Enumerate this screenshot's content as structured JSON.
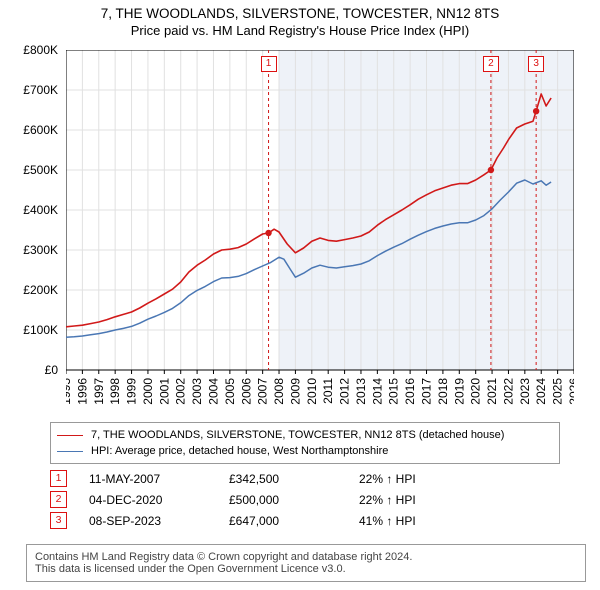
{
  "title_line1": "7, THE WOODLANDS, SILVERSTONE, TOWCESTER, NN12 8TS",
  "title_line2": "Price paid vs. HM Land Registry's House Price Index (HPI)",
  "chart": {
    "type": "line",
    "background_color": "#ffffff",
    "grid_color": "#e1e1e1",
    "axis_color": "#000000",
    "x": {
      "year_start": 1995,
      "year_end": 2026,
      "tick_labels": [
        "1995",
        "1996",
        "1997",
        "1998",
        "1999",
        "2000",
        "2001",
        "2002",
        "2003",
        "2004",
        "2005",
        "2006",
        "2007",
        "2008",
        "2009",
        "2010",
        "2011",
        "2012",
        "2013",
        "2014",
        "2015",
        "2016",
        "2017",
        "2018",
        "2019",
        "2020",
        "2021",
        "2022",
        "2023",
        "2024",
        "2025",
        "2026"
      ],
      "label_fontsize": 12,
      "label_rotation": -90
    },
    "y": {
      "min": 0,
      "max": 800000,
      "tick_step": 100000,
      "tick_labels": [
        "£0",
        "£100K",
        "£200K",
        "£300K",
        "£400K",
        "£500K",
        "£600K",
        "£700K",
        "£800K"
      ],
      "label_fontsize": 12
    },
    "shaded_from_year": 2008,
    "shaded_fill": "#eef2f8",
    "series": [
      {
        "id": "subject",
        "label": "7, THE WOODLANDS, SILVERSTONE, TOWCESTER, NN12 8TS (detached house)",
        "color": "#d11919",
        "line_width": 1.6,
        "points": [
          [
            1995.0,
            108000
          ],
          [
            1995.5,
            110000
          ],
          [
            1996.0,
            112000
          ],
          [
            1996.5,
            116000
          ],
          [
            1997.0,
            120000
          ],
          [
            1997.5,
            126000
          ],
          [
            1998.0,
            133000
          ],
          [
            1998.5,
            139000
          ],
          [
            1999.0,
            145000
          ],
          [
            1999.5,
            155000
          ],
          [
            2000.0,
            167000
          ],
          [
            2000.5,
            178000
          ],
          [
            2001.0,
            190000
          ],
          [
            2001.5,
            202000
          ],
          [
            2002.0,
            220000
          ],
          [
            2002.5,
            245000
          ],
          [
            2003.0,
            262000
          ],
          [
            2003.5,
            275000
          ],
          [
            2004.0,
            290000
          ],
          [
            2004.5,
            300000
          ],
          [
            2005.0,
            302000
          ],
          [
            2005.5,
            306000
          ],
          [
            2006.0,
            315000
          ],
          [
            2006.5,
            328000
          ],
          [
            2007.0,
            340000
          ],
          [
            2007.36,
            342500
          ],
          [
            2007.7,
            352000
          ],
          [
            2008.0,
            345000
          ],
          [
            2008.5,
            315000
          ],
          [
            2009.0,
            293000
          ],
          [
            2009.5,
            305000
          ],
          [
            2010.0,
            322000
          ],
          [
            2010.5,
            330000
          ],
          [
            2011.0,
            324000
          ],
          [
            2011.5,
            322000
          ],
          [
            2012.0,
            326000
          ],
          [
            2012.5,
            330000
          ],
          [
            2013.0,
            335000
          ],
          [
            2013.5,
            345000
          ],
          [
            2014.0,
            362000
          ],
          [
            2014.5,
            376000
          ],
          [
            2015.0,
            388000
          ],
          [
            2015.5,
            400000
          ],
          [
            2016.0,
            413000
          ],
          [
            2016.5,
            427000
          ],
          [
            2017.0,
            438000
          ],
          [
            2017.5,
            448000
          ],
          [
            2018.0,
            455000
          ],
          [
            2018.5,
            462000
          ],
          [
            2019.0,
            466000
          ],
          [
            2019.5,
            466000
          ],
          [
            2020.0,
            475000
          ],
          [
            2020.5,
            488000
          ],
          [
            2020.93,
            500000
          ],
          [
            2021.3,
            530000
          ],
          [
            2021.7,
            555000
          ],
          [
            2022.0,
            576000
          ],
          [
            2022.5,
            605000
          ],
          [
            2023.0,
            615000
          ],
          [
            2023.5,
            622000
          ],
          [
            2023.69,
            647000
          ],
          [
            2024.0,
            690000
          ],
          [
            2024.3,
            660000
          ],
          [
            2024.6,
            680000
          ]
        ]
      },
      {
        "id": "hpi",
        "label": "HPI: Average price, detached house, West Northamptonshire",
        "color": "#4a77b4",
        "line_width": 1.5,
        "points": [
          [
            1995.0,
            82000
          ],
          [
            1995.5,
            83000
          ],
          [
            1996.0,
            85000
          ],
          [
            1996.5,
            88000
          ],
          [
            1997.0,
            91000
          ],
          [
            1997.5,
            95000
          ],
          [
            1998.0,
            100000
          ],
          [
            1998.5,
            104000
          ],
          [
            1999.0,
            109000
          ],
          [
            1999.5,
            117000
          ],
          [
            2000.0,
            127000
          ],
          [
            2000.5,
            135000
          ],
          [
            2001.0,
            144000
          ],
          [
            2001.5,
            154000
          ],
          [
            2002.0,
            168000
          ],
          [
            2002.5,
            186000
          ],
          [
            2003.0,
            199000
          ],
          [
            2003.5,
            209000
          ],
          [
            2004.0,
            221000
          ],
          [
            2004.5,
            230000
          ],
          [
            2005.0,
            231000
          ],
          [
            2005.5,
            234000
          ],
          [
            2006.0,
            241000
          ],
          [
            2006.5,
            251000
          ],
          [
            2007.0,
            260000
          ],
          [
            2007.5,
            269000
          ],
          [
            2008.0,
            282000
          ],
          [
            2008.3,
            277000
          ],
          [
            2008.7,
            251000
          ],
          [
            2009.0,
            232000
          ],
          [
            2009.5,
            242000
          ],
          [
            2010.0,
            255000
          ],
          [
            2010.5,
            262000
          ],
          [
            2011.0,
            257000
          ],
          [
            2011.5,
            255000
          ],
          [
            2012.0,
            258000
          ],
          [
            2012.5,
            261000
          ],
          [
            2013.0,
            265000
          ],
          [
            2013.5,
            273000
          ],
          [
            2014.0,
            286000
          ],
          [
            2014.5,
            297000
          ],
          [
            2015.0,
            307000
          ],
          [
            2015.5,
            316000
          ],
          [
            2016.0,
            327000
          ],
          [
            2016.5,
            337000
          ],
          [
            2017.0,
            346000
          ],
          [
            2017.5,
            354000
          ],
          [
            2018.0,
            360000
          ],
          [
            2018.5,
            365000
          ],
          [
            2019.0,
            368000
          ],
          [
            2019.5,
            368000
          ],
          [
            2020.0,
            375000
          ],
          [
            2020.5,
            386000
          ],
          [
            2021.0,
            403000
          ],
          [
            2021.5,
            425000
          ],
          [
            2022.0,
            445000
          ],
          [
            2022.5,
            467000
          ],
          [
            2023.0,
            475000
          ],
          [
            2023.5,
            465000
          ],
          [
            2024.0,
            473000
          ],
          [
            2024.3,
            462000
          ],
          [
            2024.6,
            470000
          ]
        ]
      }
    ],
    "sale_markers": [
      {
        "num": "1",
        "year": 2007.36,
        "value": 342500,
        "line_color": "#d11919"
      },
      {
        "num": "2",
        "year": 2020.93,
        "value": 500000,
        "line_color": "#d11919"
      },
      {
        "num": "3",
        "year": 2023.69,
        "value": 647000,
        "line_color": "#d11919"
      }
    ],
    "marker_dot_radius": 3.2
  },
  "legend": {
    "colors": [
      "#d11919",
      "#4a77b4"
    ],
    "labels": [
      "7, THE WOODLANDS, SILVERSTONE, TOWCESTER, NN12 8TS (detached house)",
      "HPI: Average price, detached house, West Northamptonshire"
    ]
  },
  "sale_rows": [
    {
      "num": "1",
      "date": "11-MAY-2007",
      "price": "£342,500",
      "pct": "22% ↑ HPI"
    },
    {
      "num": "2",
      "date": "04-DEC-2020",
      "price": "£500,000",
      "pct": "22% ↑ HPI"
    },
    {
      "num": "3",
      "date": "08-SEP-2023",
      "price": "£647,000",
      "pct": "41% ↑ HPI"
    }
  ],
  "footer": {
    "line1": "Contains HM Land Registry data © Crown copyright and database right 2024.",
    "line2": "This data is licensed under the Open Government Licence v3.0."
  }
}
